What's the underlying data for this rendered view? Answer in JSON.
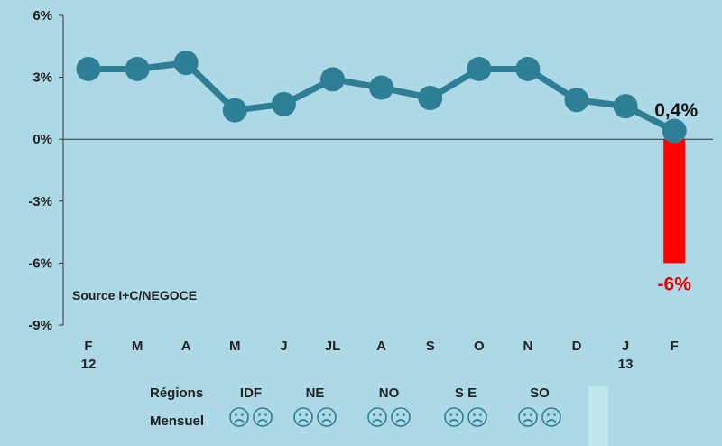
{
  "chart_data": {
    "type": "line",
    "categories": [
      "F",
      "M",
      "A",
      "M",
      "J",
      "JL",
      "A",
      "S",
      "O",
      "N",
      "D",
      "J",
      "F"
    ],
    "category_sublabels": [
      "12",
      "",
      "",
      "",
      "",
      "",
      "",
      "",
      "",
      "",
      "",
      "13",
      ""
    ],
    "series": [
      {
        "values": [
          3.4,
          3.4,
          3.7,
          1.4,
          1.7,
          2.9,
          2.5,
          2.0,
          3.4,
          3.4,
          1.9,
          1.6,
          0.4
        ],
        "color": "#2e7f96"
      }
    ],
    "bar": {
      "category_index": 12,
      "value": -6,
      "label": "-6%",
      "color": "#ff0000"
    },
    "end_label": "0,4%",
    "ylim": [
      -9,
      6
    ],
    "yticks": [
      6,
      3,
      0,
      -3,
      -6,
      -9
    ],
    "ytick_labels": [
      "6%",
      "3%",
      "0%",
      "-3%",
      "-6%",
      "-9%"
    ],
    "source_note": "Source I+C/NEGOCE",
    "grid": false
  },
  "regions": {
    "row_label": "Régions",
    "monthly_label": "Mensuel",
    "items": [
      "IDF",
      "NE",
      "NO",
      "S E",
      "SO"
    ],
    "mood_icon": "sad-face-icon",
    "icon_color": "#2f7f96"
  },
  "colors": {
    "background": "#add8e6",
    "line": "#2e7f96",
    "highlight_box": "#bfe8ea"
  }
}
